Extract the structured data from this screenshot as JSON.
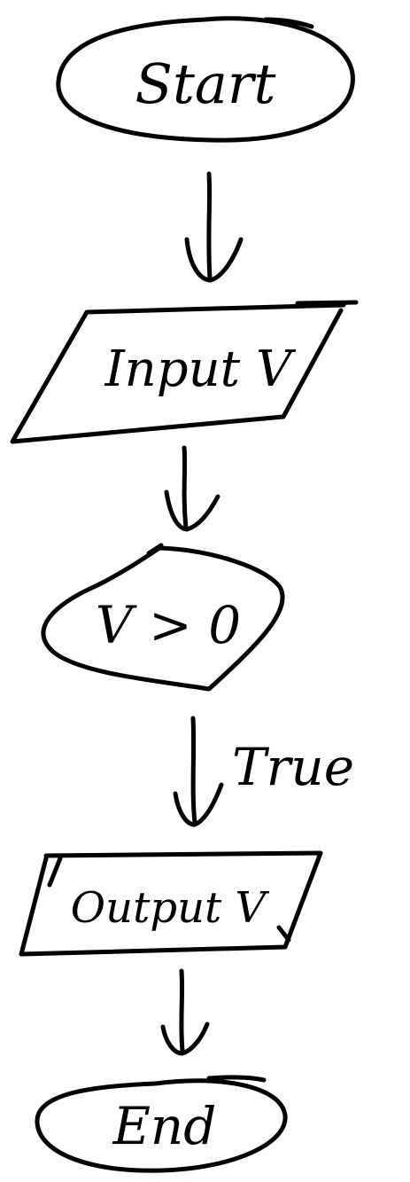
{
  "flowchart": {
    "nodes": [
      {
        "id": "start",
        "shape": "terminator",
        "label": "Start"
      },
      {
        "id": "input",
        "shape": "input-output",
        "label": "Input V"
      },
      {
        "id": "decision",
        "shape": "decision",
        "label": "V > 0"
      },
      {
        "id": "output",
        "shape": "input-output",
        "label": "Output V"
      },
      {
        "id": "end",
        "shape": "terminator",
        "label": "End"
      }
    ],
    "edges": [
      {
        "from": "start",
        "to": "input",
        "label": ""
      },
      {
        "from": "input",
        "to": "decision",
        "label": ""
      },
      {
        "from": "decision",
        "to": "output",
        "label": "True"
      },
      {
        "from": "output",
        "to": "end",
        "label": ""
      }
    ]
  },
  "colors": {
    "ink": "#000000",
    "background": "#ffffff"
  }
}
